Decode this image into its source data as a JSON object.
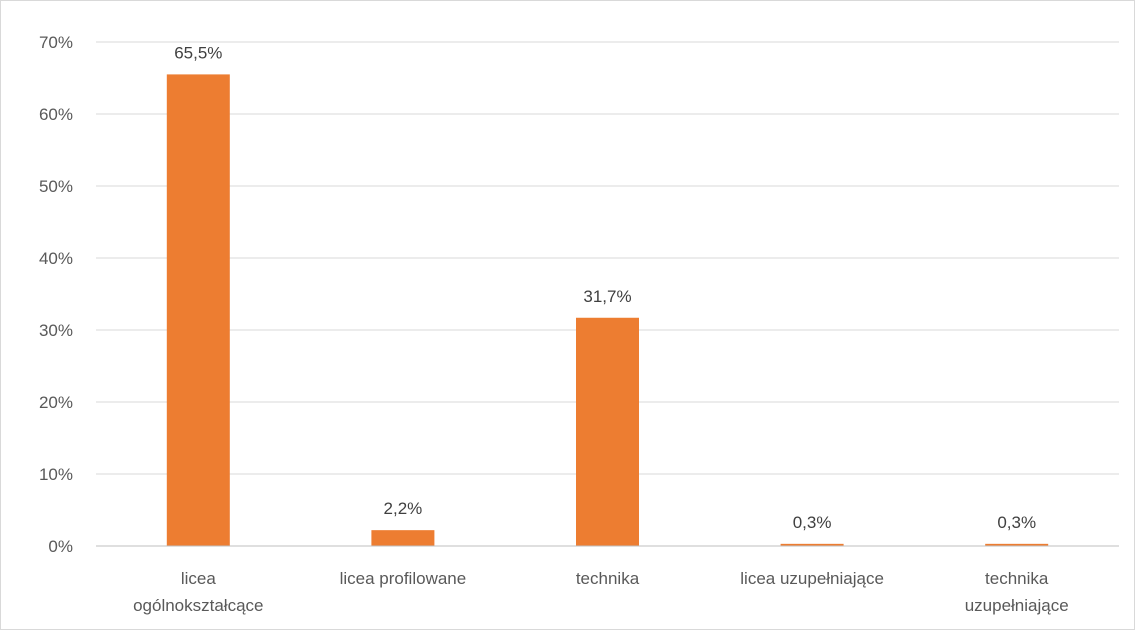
{
  "colors": {
    "bar": "#ed7d31",
    "grid": "#d9d9d9",
    "text": "#595959"
  },
  "chart_data": {
    "type": "bar",
    "title": "",
    "xlabel": "",
    "ylabel": "",
    "categories": [
      [
        "licea",
        "ogólnokształcące"
      ],
      [
        "licea profilowane"
      ],
      [
        "technika"
      ],
      [
        "licea uzupełniające"
      ],
      [
        "technika",
        "uzupełniające"
      ]
    ],
    "values": [
      65.5,
      2.2,
      31.7,
      0.3,
      0.3
    ],
    "data_labels": [
      "65,5%",
      "2,2%",
      "31,7%",
      "0,3%",
      "0,3%"
    ],
    "ylim": [
      0,
      70
    ],
    "yticks": [
      0,
      10,
      20,
      30,
      40,
      50,
      60,
      70
    ],
    "ytick_labels": [
      "0%",
      "10%",
      "20%",
      "30%",
      "40%",
      "50%",
      "60%",
      "70%"
    ],
    "grid": true,
    "legend": "none"
  }
}
